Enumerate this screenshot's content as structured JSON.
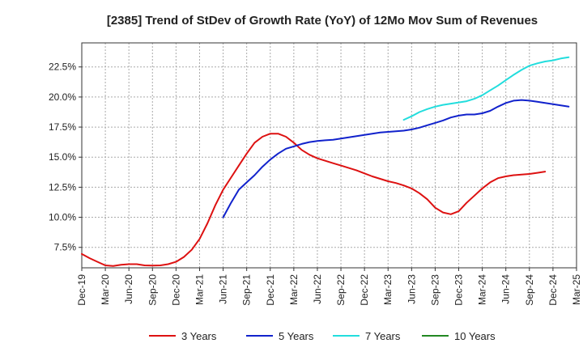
{
  "chart_data": {
    "type": "line",
    "title": "[2385]  Trend of StDev of Growth Rate (YoY) of 12Mo Mov Sum of Revenues",
    "xlabel": "",
    "ylabel": "",
    "ylim": [
      5.8,
      24.5
    ],
    "yticks": [
      7.5,
      10.0,
      12.5,
      15.0,
      17.5,
      20.0,
      22.5
    ],
    "ytick_labels": [
      "7.5%",
      "10.0%",
      "12.5%",
      "15.0%",
      "17.5%",
      "20.0%",
      "22.5%"
    ],
    "xticks": [
      "Dec-19",
      "Mar-20",
      "Jun-20",
      "Sep-20",
      "Dec-20",
      "Mar-21",
      "Jun-21",
      "Sep-21",
      "Dec-21",
      "Mar-22",
      "Jun-22",
      "Sep-22",
      "Dec-22",
      "Mar-23",
      "Jun-23",
      "Sep-23",
      "Dec-23",
      "Mar-24",
      "Jun-24",
      "Sep-24",
      "Dec-24",
      "Mar-25"
    ],
    "grid": true,
    "legend_position": "bottom",
    "series": [
      {
        "name": "3 Years",
        "color": "#dd1111",
        "start_index": 0,
        "values": [
          6.95,
          6.6,
          6.3,
          6.0,
          5.95,
          6.05,
          6.1,
          6.1,
          6.0,
          5.98,
          6.0,
          6.1,
          6.3,
          6.7,
          7.3,
          8.2,
          9.5,
          11.0,
          12.3,
          13.3,
          14.3,
          15.3,
          16.2,
          16.7,
          16.95,
          16.95,
          16.7,
          16.2,
          15.6,
          15.2,
          14.9,
          14.7,
          14.5,
          14.3,
          14.1,
          13.9,
          13.65,
          13.4,
          13.2,
          13.0,
          12.85,
          12.65,
          12.4,
          12.0,
          11.5,
          10.8,
          10.4,
          10.25,
          10.5,
          11.2,
          11.8,
          12.4,
          12.9,
          13.25,
          13.4,
          13.5,
          13.55,
          13.6,
          13.7,
          13.8
        ]
      },
      {
        "name": "5 Years",
        "color": "#1122cc",
        "start_index": 18,
        "values": [
          10.0,
          11.2,
          12.3,
          12.9,
          13.5,
          14.2,
          14.8,
          15.3,
          15.7,
          15.9,
          16.1,
          16.25,
          16.35,
          16.4,
          16.45,
          16.55,
          16.65,
          16.75,
          16.85,
          16.95,
          17.05,
          17.1,
          17.15,
          17.2,
          17.3,
          17.45,
          17.65,
          17.85,
          18.05,
          18.3,
          18.45,
          18.55,
          18.55,
          18.65,
          18.85,
          19.2,
          19.5,
          19.7,
          19.75,
          19.7,
          19.6,
          19.5,
          19.4,
          19.3,
          19.2
        ]
      },
      {
        "name": "7 Years",
        "color": "#22dddd",
        "start_index": 41,
        "values": [
          18.1,
          18.4,
          18.75,
          19.0,
          19.2,
          19.35,
          19.45,
          19.55,
          19.65,
          19.85,
          20.15,
          20.55,
          20.95,
          21.4,
          21.85,
          22.25,
          22.6,
          22.8,
          22.95,
          23.05,
          23.2,
          23.3
        ]
      },
      {
        "name": "10 Years",
        "color": "#228822",
        "start_index": 0,
        "values": []
      }
    ]
  }
}
